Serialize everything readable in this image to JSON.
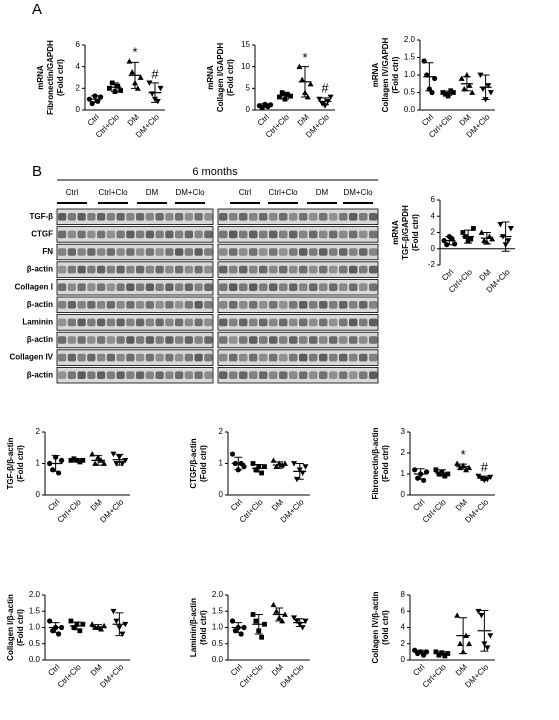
{
  "panel_labels": [
    "A",
    "B"
  ],
  "blot": {
    "title": "6 months",
    "groups": [
      "Ctrl",
      "Ctrl+Clo",
      "DM",
      "DM+Clo",
      "Ctrl",
      "Ctrl+Clo",
      "DM",
      "DM+Clo"
    ],
    "rows": [
      "TGF-β",
      "CTGF",
      "FN",
      "β-actin",
      "Collagen Ⅰ",
      "β-actin",
      "Laminin",
      "β-actin",
      "Collagen IV",
      "β-actin"
    ]
  },
  "chart_data": [
    {
      "type": "dotplot",
      "ylabel": [
        "mRNA",
        "Fibronectin/GAPDH",
        "(Fold ctrl)"
      ],
      "categories": [
        "Ctrl",
        "Ctrl+Clo",
        "DM",
        "DM+Clo"
      ],
      "values": [
        [
          1.0,
          0.6,
          1.3,
          0.8,
          1.2
        ],
        [
          2.0,
          2.5,
          1.7,
          2.2,
          1.8
        ],
        [
          4.5,
          3.5,
          2.5,
          2.0,
          3.0
        ],
        [
          2.5,
          1.5,
          1.0,
          0.8,
          2.0
        ]
      ],
      "means": [
        1.0,
        2.1,
        3.2,
        1.6
      ],
      "sds": [
        0.3,
        0.4,
        1.2,
        0.9
      ],
      "annotations": [
        null,
        null,
        "*",
        "#"
      ],
      "ylim": [
        0,
        6
      ],
      "yticks": [
        0,
        2,
        4,
        6
      ],
      "markers": [
        "circle",
        "square",
        "triangle",
        "triangle-down"
      ],
      "color": "#000000"
    },
    {
      "type": "dotplot",
      "ylabel": [
        "mRNA",
        "Collagen I/GAPDH",
        "(Fold ctrl)"
      ],
      "categories": [
        "Ctrl",
        "Ctrl+Clo",
        "DM",
        "DM+Clo"
      ],
      "values": [
        [
          1.0,
          0.5,
          1.3,
          0.8,
          1.2
        ],
        [
          3.0,
          4.0,
          2.5,
          3.5,
          3.2
        ],
        [
          10,
          7,
          4,
          3,
          6
        ],
        [
          2.5,
          1.5,
          1.0,
          2.0,
          3.0
        ]
      ],
      "means": [
        1.0,
        3.3,
        6.5,
        2.0
      ],
      "sds": [
        0.4,
        0.8,
        3.5,
        0.8
      ],
      "annotations": [
        null,
        null,
        "*",
        "#"
      ],
      "ylim": [
        0,
        15
      ],
      "yticks": [
        0,
        5,
        10,
        15
      ],
      "markers": [
        "circle",
        "square",
        "triangle",
        "triangle-down"
      ],
      "color": "#000000"
    },
    {
      "type": "dotplot",
      "ylabel": [
        "mRNA",
        "Collagen IV/GAPDH",
        "(Fold ctrl)"
      ],
      "categories": [
        "Ctrl",
        "Ctrl+Clo",
        "DM",
        "DM+Clo"
      ],
      "values": [
        [
          1.4,
          1.0,
          0.6,
          0.5,
          0.9
        ],
        [
          0.5,
          0.45,
          0.4,
          0.55,
          0.5
        ],
        [
          0.9,
          0.6,
          1.0,
          0.7,
          0.5
        ],
        [
          1.0,
          0.6,
          0.3,
          0.7,
          0.5
        ]
      ],
      "means": [
        0.95,
        0.48,
        0.75,
        0.65
      ],
      "sds": [
        0.4,
        0.06,
        0.2,
        0.35
      ],
      "annotations": [
        null,
        null,
        null,
        null
      ],
      "ylim": [
        0,
        2
      ],
      "yticks": [
        {
          "value": 0,
          "label": "0.0"
        },
        0.5,
        {
          "value": 1,
          "label": "1.0"
        },
        1.5,
        {
          "value": 2,
          "label": "2.0"
        }
      ],
      "markers": [
        "circle",
        "square",
        "triangle",
        "triangle-down"
      ],
      "color": "#000000"
    },
    {
      "type": "dotplot",
      "ylabel": [
        "mRNA",
        "TGF-β/GAPDH",
        "(Fold ctrl)"
      ],
      "categories": [
        "Ctrl",
        "Ctrl+Clo",
        "DM",
        "DM+Clo"
      ],
      "values": [
        [
          1.0,
          0.5,
          1.5,
          1.2,
          0.6
        ],
        [
          2.0,
          1.5,
          1.0,
          1.2,
          2.5
        ],
        [
          2.0,
          1.0,
          0.8,
          1.5,
          1.2
        ],
        [
          3.0,
          1.5,
          0.5,
          1.0,
          2.5
        ]
      ],
      "means": [
        1.0,
        1.5,
        1.3,
        1.5
      ],
      "sds": [
        0.5,
        0.8,
        0.7,
        1.8
      ],
      "annotations": [
        null,
        null,
        null,
        null
      ],
      "ylim": [
        -2,
        6
      ],
      "yticks": [
        -2,
        0,
        2,
        4,
        6
      ],
      "markers": [
        "circle",
        "square",
        "triangle",
        "triangle-down"
      ],
      "color": "#000000"
    },
    {
      "type": "dotplot",
      "ylabel": [
        "TGF-β/β-actin",
        "(Fold ctrl)"
      ],
      "categories": [
        "Ctrl",
        "Ctrl+Clo",
        "DM",
        "DM+Clo"
      ],
      "values": [
        [
          1.0,
          0.8,
          1.2,
          0.7,
          1.1
        ],
        [
          1.1,
          1.15,
          1.1,
          1.05,
          1.1
        ],
        [
          1.3,
          1.0,
          1.2,
          1.1,
          1.0
        ],
        [
          1.3,
          1.0,
          1.2,
          1.0,
          1.1
        ]
      ],
      "means": [
        1.0,
        1.1,
        1.1,
        1.12
      ],
      "sds": [
        0.25,
        0.05,
        0.15,
        0.17
      ],
      "annotations": [
        null,
        null,
        null,
        null
      ],
      "ylim": [
        0,
        2
      ],
      "yticks": [
        0,
        1,
        2
      ],
      "markers": [
        "circle",
        "square",
        "triangle",
        "triangle-down"
      ],
      "color": "#000000"
    },
    {
      "type": "dotplot",
      "ylabel": [
        "CTGF/β-actin",
        "(Fold ctrl)"
      ],
      "categories": [
        "Ctrl",
        "Ctrl+Clo",
        "DM",
        "DM+Clo"
      ],
      "values": [
        [
          1.3,
          1.0,
          0.8,
          1.0,
          0.9
        ],
        [
          1.0,
          0.8,
          0.9,
          0.7,
          0.9
        ],
        [
          1.1,
          0.9,
          1.0,
          0.95,
          1.0
        ],
        [
          1.0,
          0.5,
          0.8,
          0.7,
          0.9
        ]
      ],
      "means": [
        1.0,
        0.85,
        0.95,
        0.75
      ],
      "sds": [
        0.2,
        0.12,
        0.1,
        0.25
      ],
      "annotations": [
        null,
        null,
        null,
        null
      ],
      "ylim": [
        0,
        2
      ],
      "yticks": [
        0,
        1,
        2
      ],
      "markers": [
        "circle",
        "square",
        "triangle",
        "triangle-down"
      ],
      "color": "#000000"
    },
    {
      "type": "dotplot",
      "ylabel": [
        "Fibronectin/β-actin",
        "(Fold ctrl)"
      ],
      "categories": [
        "Ctrl",
        "Ctrl+Clo",
        "DM",
        "DM+Clo"
      ],
      "values": [
        [
          1.2,
          0.8,
          1.0,
          0.7,
          1.1
        ],
        [
          1.2,
          1.0,
          1.1,
          0.9,
          1.0
        ],
        [
          1.5,
          1.3,
          1.4,
          1.2,
          1.3
        ],
        [
          0.9,
          0.8,
          0.7,
          0.75,
          0.85
        ]
      ],
      "means": [
        1.0,
        1.05,
        1.35,
        0.8
      ],
      "sds": [
        0.25,
        0.15,
        0.12,
        0.1
      ],
      "annotations": [
        null,
        null,
        "*",
        "#"
      ],
      "ylim": [
        0,
        3
      ],
      "yticks": [
        0,
        1,
        2,
        3
      ],
      "markers": [
        "circle",
        "square",
        "triangle",
        "triangle-down"
      ],
      "color": "#000000"
    },
    {
      "type": "dotplot",
      "ylabel": [
        "Collagen I/β-actin",
        "(Fold ctrl)"
      ],
      "categories": [
        "Ctrl",
        "Ctrl+Clo",
        "DM",
        "DM+Clo"
      ],
      "values": [
        [
          1.2,
          0.9,
          1.0,
          0.8,
          1.0
        ],
        [
          1.2,
          1.0,
          1.1,
          0.9,
          1.1
        ],
        [
          1.1,
          1.0,
          1.0,
          0.95,
          1.05
        ],
        [
          1.5,
          1.2,
          1.0,
          0.8,
          1.1
        ]
      ],
      "means": [
        1.0,
        1.05,
        1.02,
        1.1
      ],
      "sds": [
        0.15,
        0.12,
        0.07,
        0.35
      ],
      "annotations": [
        null,
        null,
        null,
        null
      ],
      "ylim": [
        0,
        2
      ],
      "yticks": [
        {
          "value": 0,
          "label": "0.0"
        },
        0.5,
        {
          "value": 1,
          "label": "1.0"
        },
        1.5,
        {
          "value": 2,
          "label": "2.0"
        }
      ],
      "markers": [
        "circle",
        "square",
        "triangle",
        "triangle-down"
      ],
      "color": "#000000"
    },
    {
      "type": "dotplot",
      "ylabel": [
        "Laminin/β-actin",
        "(fold ctrl)"
      ],
      "categories": [
        "Ctrl",
        "Ctrl+Clo",
        "DM",
        "DM+Clo"
      ],
      "values": [
        [
          1.2,
          0.9,
          1.0,
          0.8,
          1.0
        ],
        [
          1.4,
          1.2,
          0.9,
          0.7,
          1.1
        ],
        [
          1.7,
          1.5,
          1.3,
          1.2,
          1.4
        ],
        [
          1.3,
          1.2,
          1.1,
          1.0,
          1.2
        ]
      ],
      "means": [
        1.0,
        1.1,
        1.4,
        1.15
      ],
      "sds": [
        0.15,
        0.3,
        0.2,
        0.12
      ],
      "annotations": [
        null,
        null,
        null,
        null
      ],
      "ylim": [
        0,
        2
      ],
      "yticks": [
        {
          "value": 0,
          "label": "0.0"
        },
        0.5,
        {
          "value": 1,
          "label": "1.0"
        },
        1.5,
        {
          "value": 2,
          "label": "2.0"
        }
      ],
      "markers": [
        "circle",
        "square",
        "triangle",
        "triangle-down"
      ],
      "color": "#000000"
    },
    {
      "type": "dotplot",
      "ylabel": [
        "Collagen IV/β-actin",
        "(fold ctrl)"
      ],
      "categories": [
        "Ctrl",
        "Ctrl+Clo",
        "DM",
        "DM+Clo"
      ],
      "values": [
        [
          1.2,
          0.8,
          1.0,
          0.6,
          1.0
        ],
        [
          1.0,
          0.6,
          0.9,
          0.5,
          0.8
        ],
        [
          5.5,
          2.0,
          1.0,
          3.0,
          2.0
        ],
        [
          6.0,
          5.5,
          2.0,
          1.5,
          3.0
        ]
      ],
      "means": [
        1.0,
        0.8,
        3.0,
        3.6
      ],
      "sds": [
        0.2,
        0.2,
        2.2,
        2.5
      ],
      "annotations": [
        null,
        null,
        null,
        null
      ],
      "ylim": [
        0,
        8
      ],
      "yticks": [
        0,
        2,
        4,
        6,
        8
      ],
      "markers": [
        "circle",
        "square",
        "triangle",
        "triangle-down"
      ],
      "color": "#000000"
    }
  ]
}
